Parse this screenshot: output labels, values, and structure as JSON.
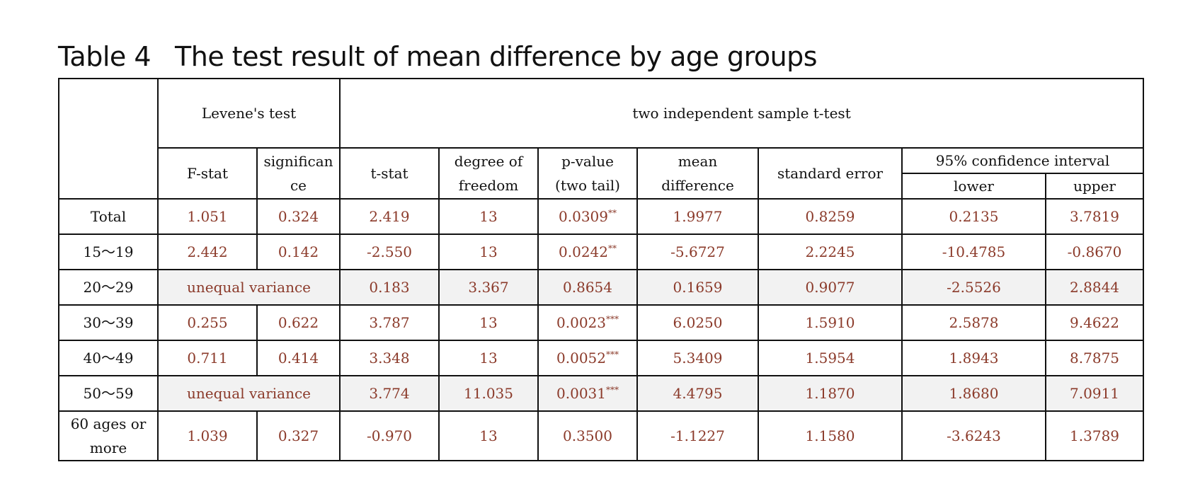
{
  "title": {
    "label": "Table 4",
    "text": "The test result of mean difference by age groups"
  },
  "headers": {
    "levene": "Levene's test",
    "ttest": "two independent sample t-test",
    "fstat": "F-stat",
    "significance_1": "significan",
    "significance_2": "ce",
    "tstat": "t-stat",
    "df_1": "degree of",
    "df_2": "freedom",
    "p_1": "p-value",
    "p_2": "(two tail)",
    "md_1": "mean",
    "md_2": "difference",
    "se": "standard error",
    "ci": "95% confidence interval",
    "lower": "lower",
    "upper": "upper"
  },
  "rows": [
    {
      "group": "Total",
      "f": "1.051",
      "sig": "0.324",
      "t": "2.419",
      "df": "13",
      "p": "0.0309",
      "stars": "**",
      "md": "1.9977",
      "se": "0.8259",
      "lower": "0.2135",
      "upper": "3.7819"
    },
    {
      "group": "15～19",
      "f": "2.442",
      "sig": "0.142",
      "t": "-2.550",
      "df": "13",
      "p": "0.0242",
      "stars": "**",
      "md": "-5.6727",
      "se": "2.2245",
      "lower": "-10.4785",
      "upper": "-0.8670"
    },
    {
      "group": "20～29",
      "levene_note": "unequal variance",
      "t": "0.183",
      "df": "3.367",
      "p": "0.8654",
      "md": "0.1659",
      "se": "0.9077",
      "lower": "-2.5526",
      "upper": "2.8844"
    },
    {
      "group": "30～39",
      "f": "0.255",
      "sig": "0.622",
      "t": "3.787",
      "df": "13",
      "p": "0.0023",
      "stars": "***",
      "md": "6.0250",
      "se": "1.5910",
      "lower": "2.5878",
      "upper": "9.4622"
    },
    {
      "group": "40～49",
      "f": "0.711",
      "sig": "0.414",
      "t": "3.348",
      "df": "13",
      "p": "0.0052",
      "stars": "***",
      "md": "5.3409",
      "se": "1.5954",
      "lower": "1.8943",
      "upper": "8.7875"
    },
    {
      "group": "50～59",
      "levene_note": "unequal variance",
      "t": "3.774",
      "df": "11.035",
      "p": "0.0031",
      "stars": "***",
      "md": "4.4795",
      "se": "1.1870",
      "lower": "1.8680",
      "upper": "7.0911"
    },
    {
      "group_1": "60 ages or",
      "group_2": "more",
      "f": "1.039",
      "sig": "0.327",
      "t": "-0.970",
      "df": "13",
      "p": "0.3500",
      "md": "-1.1227",
      "se": "1.1580",
      "lower": "-3.6243",
      "upper": "1.3789"
    }
  ]
}
